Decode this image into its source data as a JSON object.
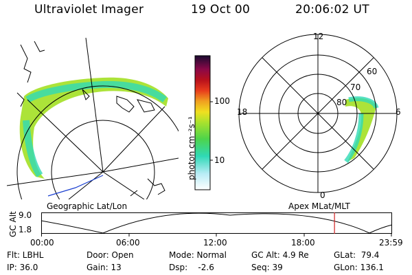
{
  "header": {
    "instrument": "Ultraviolet Imager",
    "date": "19 Oct 00",
    "time": "20:06:02 UT"
  },
  "colorbar": {
    "unit_label": "photon cm⁻²s⁻¹",
    "ticks": [
      "100",
      "10"
    ]
  },
  "polar": {
    "mlt_labels": {
      "top": "12",
      "left": "18",
      "right": "6",
      "bottom": "0"
    },
    "lat_labels": [
      "60",
      "70",
      "80"
    ]
  },
  "timeline": {
    "left_label": "Geographic Lat/Lon",
    "right_label": "Apex MLat/MLT",
    "ylabel": "GC Alt",
    "yticks": [
      "9.0",
      "1.8"
    ],
    "xticks": [
      "00:00",
      "06:00",
      "12:00",
      "18:00",
      "23:59"
    ],
    "current_time_hours": 20.1
  },
  "info": {
    "row1": {
      "flt": "Flt: LBHL",
      "door": "Door: Open",
      "mode": "Mode: Normal",
      "gcalt": "GC Alt: 4.9 Re",
      "glat": "GLat:  79.4"
    },
    "row2": {
      "ip": "IP: 36.0",
      "gain": "Gain: 13",
      "dsp": "Dsp:    -2.6",
      "seq": "Seq: 39",
      "glon": "GLon: 136.1"
    }
  },
  "colors": {
    "aurora_green": "#a8e22e",
    "aurora_cyan": "#2fd9b6",
    "coast_blue": "#1a3fd0",
    "marker_red": "#d02020"
  }
}
